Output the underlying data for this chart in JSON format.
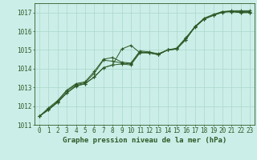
{
  "title": "Graphe pression niveau de la mer (hPa)",
  "bg_color": "#cceee8",
  "grid_color": "#aad8cc",
  "line_color": "#2d5a27",
  "xlim": [
    -0.5,
    23.5
  ],
  "ylim": [
    1011.0,
    1017.5
  ],
  "yticks": [
    1011,
    1012,
    1013,
    1014,
    1015,
    1016,
    1017
  ],
  "xticks": [
    0,
    1,
    2,
    3,
    4,
    5,
    6,
    7,
    8,
    9,
    10,
    11,
    12,
    13,
    14,
    15,
    16,
    17,
    18,
    19,
    20,
    21,
    22,
    23
  ],
  "lines": [
    [
      1011.45,
      1011.8,
      1012.2,
      1012.7,
      1013.1,
      1013.2,
      1013.55,
      1014.05,
      1014.2,
      1015.05,
      1015.25,
      1014.85,
      1014.85,
      1014.75,
      1015.0,
      1015.05,
      1015.55,
      1016.25,
      1016.65,
      1016.85,
      1017.05,
      1017.05,
      1017.0,
      1017.0
    ],
    [
      1011.45,
      1011.8,
      1012.2,
      1012.7,
      1013.05,
      1013.2,
      1013.55,
      1014.05,
      1014.2,
      1014.25,
      1014.2,
      1014.85,
      1014.85,
      1014.75,
      1015.0,
      1015.05,
      1015.55,
      1016.25,
      1016.65,
      1016.85,
      1017.05,
      1017.05,
      1017.0,
      1017.0
    ],
    [
      1011.45,
      1011.85,
      1012.25,
      1012.8,
      1013.15,
      1013.25,
      1013.75,
      1014.45,
      1014.4,
      1014.3,
      1014.25,
      1014.9,
      1014.85,
      1014.75,
      1015.0,
      1015.05,
      1015.6,
      1016.2,
      1016.65,
      1016.85,
      1017.0,
      1017.05,
      1017.05,
      1017.05
    ],
    [
      1011.45,
      1011.9,
      1012.3,
      1012.85,
      1013.2,
      1013.3,
      1013.85,
      1014.5,
      1014.6,
      1014.35,
      1014.3,
      1014.95,
      1014.9,
      1014.8,
      1015.0,
      1015.1,
      1015.65,
      1016.25,
      1016.7,
      1016.9,
      1017.05,
      1017.1,
      1017.1,
      1017.1
    ]
  ],
  "marker": "+",
  "markersize": 3,
  "linewidth": 0.7,
  "tick_fontsize": 5.5,
  "title_fontsize": 6.5
}
